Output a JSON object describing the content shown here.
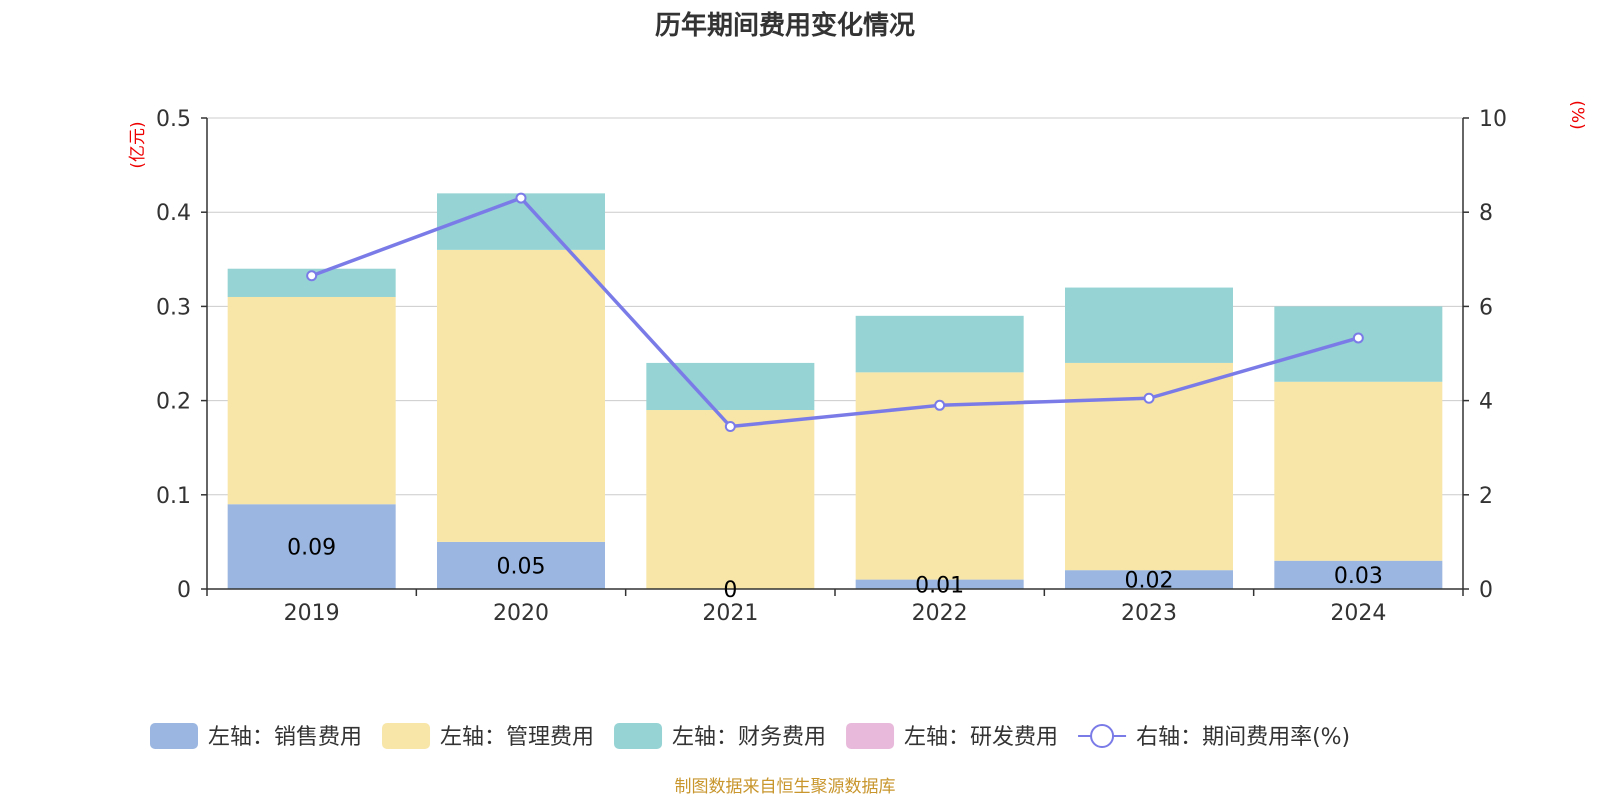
{
  "title": "历年期间费用变化情况",
  "source_text": "制图数据来自恒生聚源数据库",
  "colors": {
    "sales": "#9bb6e0",
    "admin": "#f7e6a8",
    "finance": "#96d3d4",
    "rnd": "#e8b9da",
    "rate_line": "#7b7be8",
    "grid": "#cccccc",
    "axis": "#333333",
    "unit": "#ee0000",
    "source": "#c8962d"
  },
  "chart_data": {
    "type": "bar",
    "stacked": true,
    "categories": [
      "2019",
      "2020",
      "2021",
      "2022",
      "2023",
      "2024"
    ],
    "left_axis": {
      "unit_label": "(亿元)",
      "ylim": [
        0,
        0.5
      ],
      "ticks": [
        "0",
        "0.1",
        "0.2",
        "0.3",
        "0.4",
        "0.5"
      ],
      "tick_values": [
        0,
        0.1,
        0.2,
        0.3,
        0.4,
        0.5
      ]
    },
    "right_axis": {
      "unit_label": "(%)",
      "ylim": [
        0,
        10
      ],
      "ticks": [
        "0",
        "2",
        "4",
        "6",
        "8",
        "10"
      ],
      "tick_values": [
        0,
        2,
        4,
        6,
        8,
        10
      ]
    },
    "grid": true,
    "legend_position": "bottom",
    "series": [
      {
        "name": "左轴：销售费用",
        "key": "sales",
        "axis": "left",
        "kind": "bar",
        "values": [
          0.09,
          0.05,
          0,
          0.01,
          0.02,
          0.03
        ],
        "labels": [
          "0.09",
          "0.05",
          "0",
          "0.01",
          "0.02",
          "0.03"
        ]
      },
      {
        "name": "左轴：管理费用",
        "key": "admin",
        "axis": "left",
        "kind": "bar",
        "values": [
          0.22,
          0.31,
          0.19,
          0.22,
          0.22,
          0.19
        ]
      },
      {
        "name": "左轴：财务费用",
        "key": "finance",
        "axis": "left",
        "kind": "bar",
        "values": [
          0.03,
          0.06,
          0.05,
          0.06,
          0.08,
          0.08
        ]
      },
      {
        "name": "左轴：研发费用",
        "key": "rnd",
        "axis": "left",
        "kind": "bar",
        "values": [
          0,
          0,
          0,
          0,
          0,
          0
        ]
      },
      {
        "name": "右轴：期间费用率(%)",
        "key": "rate_line",
        "axis": "right",
        "kind": "line",
        "values": [
          6.65,
          8.3,
          3.45,
          3.9,
          4.05,
          5.33
        ]
      }
    ]
  }
}
